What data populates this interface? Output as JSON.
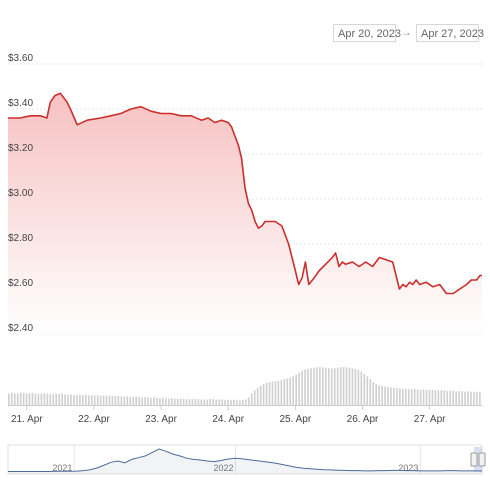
{
  "date_range": {
    "from": "Apr 20, 2023",
    "arrow": "→",
    "to": "Apr 27, 2023"
  },
  "colors": {
    "line": "#c9302c",
    "fill_top": "#f7c1c1",
    "fill_bottom": "#ffffff",
    "volume": "#d0d0d0",
    "navigator": "#4d6a99"
  },
  "chart_data": {
    "type": "area",
    "y_ticks": [
      "$3.60",
      "$3.40",
      "$3.20",
      "$3.00",
      "$2.80",
      "$2.60",
      "$2.40"
    ],
    "y_tick_values": [
      3.6,
      3.4,
      3.2,
      3.0,
      2.8,
      2.6,
      2.4
    ],
    "ylim": [
      2.4,
      3.6
    ],
    "x_ticks": [
      "21. Apr",
      "22. Apr",
      "23. Apr",
      "24. Apr",
      "25. Apr",
      "26. Apr",
      "27. Apr"
    ],
    "x_tick_values": [
      21,
      22,
      23,
      24,
      25,
      26,
      27
    ],
    "xlim": [
      20.72,
      27.78
    ],
    "grid": true,
    "series": [
      {
        "x": [
          20.72,
          20.9,
          21.05,
          21.2,
          21.3,
          21.35,
          21.42,
          21.5,
          21.6,
          21.65,
          21.75,
          21.9,
          22.1,
          22.25,
          22.4,
          22.55,
          22.7,
          22.85,
          23.0,
          23.15,
          23.3,
          23.45,
          23.6,
          23.7,
          23.8,
          23.9,
          24.0,
          24.05,
          24.1,
          24.15,
          24.2,
          24.25,
          24.3,
          24.35,
          24.4,
          24.45,
          24.5,
          24.55,
          24.6,
          24.7,
          24.8,
          24.9,
          25.0,
          25.05,
          25.1,
          25.15,
          25.2,
          25.28,
          25.35,
          25.45,
          25.55,
          25.6,
          25.65,
          25.7,
          25.75,
          25.85,
          25.95,
          26.05,
          26.15,
          26.25,
          26.35,
          26.45,
          26.55,
          26.6,
          26.65,
          26.7,
          26.75,
          26.8,
          26.85,
          26.95,
          27.05,
          27.15,
          27.25,
          27.35,
          27.45,
          27.55,
          27.62,
          27.7,
          27.75,
          27.78
        ],
        "y": [
          3.36,
          3.36,
          3.37,
          3.37,
          3.36,
          3.43,
          3.46,
          3.47,
          3.43,
          3.4,
          3.33,
          3.35,
          3.36,
          3.37,
          3.38,
          3.4,
          3.41,
          3.39,
          3.38,
          3.38,
          3.37,
          3.37,
          3.35,
          3.36,
          3.34,
          3.35,
          3.34,
          3.32,
          3.28,
          3.24,
          3.18,
          3.05,
          2.98,
          2.95,
          2.9,
          2.87,
          2.88,
          2.9,
          2.9,
          2.9,
          2.88,
          2.8,
          2.68,
          2.62,
          2.65,
          2.72,
          2.62,
          2.65,
          2.68,
          2.71,
          2.74,
          2.76,
          2.7,
          2.72,
          2.71,
          2.72,
          2.7,
          2.72,
          2.7,
          2.74,
          2.73,
          2.72,
          2.6,
          2.62,
          2.61,
          2.63,
          2.62,
          2.64,
          2.62,
          2.63,
          2.61,
          2.62,
          2.58,
          2.58,
          2.6,
          2.62,
          2.64,
          2.64,
          2.66,
          2.66
        ]
      }
    ],
    "volume": {
      "x_start": 20.72,
      "x_end": 27.78,
      "values": [
        0.3,
        0.32,
        0.31,
        0.3,
        0.33,
        0.32,
        0.3,
        0.31,
        0.32,
        0.3,
        0.29,
        0.3,
        0.31,
        0.3,
        0.29,
        0.28,
        0.3,
        0.29,
        0.3,
        0.28,
        0.27,
        0.28,
        0.27,
        0.26,
        0.27,
        0.26,
        0.27,
        0.25,
        0.26,
        0.25,
        0.26,
        0.24,
        0.25,
        0.24,
        0.25,
        0.24,
        0.23,
        0.24,
        0.23,
        0.22,
        0.23,
        0.22,
        0.21,
        0.22,
        0.21,
        0.2,
        0.21,
        0.2,
        0.19,
        0.2,
        0.19,
        0.18,
        0.19,
        0.18,
        0.17,
        0.18,
        0.17,
        0.16,
        0.17,
        0.16,
        0.15,
        0.16,
        0.15,
        0.16,
        0.15,
        0.14,
        0.15,
        0.14,
        0.16,
        0.15,
        0.14,
        0.15,
        0.14,
        0.13,
        0.14,
        0.13,
        0.14,
        0.13,
        0.12,
        0.13,
        0.15,
        0.2,
        0.3,
        0.38,
        0.45,
        0.5,
        0.55,
        0.58,
        0.6,
        0.62,
        0.63,
        0.64,
        0.66,
        0.68,
        0.7,
        0.72,
        0.75,
        0.8,
        0.85,
        0.9,
        0.93,
        0.95,
        0.97,
        0.98,
        0.99,
        1.0,
        0.99,
        0.98,
        0.97,
        0.96,
        0.97,
        0.98,
        0.99,
        1.0,
        0.99,
        0.98,
        0.97,
        0.95,
        0.92,
        0.88,
        0.82,
        0.75,
        0.68,
        0.6,
        0.55,
        0.52,
        0.5,
        0.48,
        0.47,
        0.46,
        0.45,
        0.44,
        0.43,
        0.42,
        0.43,
        0.42,
        0.41,
        0.42,
        0.41,
        0.4,
        0.41,
        0.4,
        0.39,
        0.4,
        0.39,
        0.38,
        0.39,
        0.38,
        0.37,
        0.38,
        0.37,
        0.36,
        0.37,
        0.36,
        0.35,
        0.36,
        0.35,
        0.34,
        0.35,
        0.34
      ]
    },
    "navigator": {
      "labels": [
        "2021",
        "2022",
        "2023"
      ],
      "label_positions": [
        0.14,
        0.48,
        0.87
      ],
      "values": [
        0.02,
        0.02,
        0.02,
        0.02,
        0.02,
        0.02,
        0.02,
        0.03,
        0.03,
        0.03,
        0.04,
        0.06,
        0.1,
        0.18,
        0.3,
        0.42,
        0.48,
        0.4,
        0.55,
        0.62,
        0.7,
        0.85,
        1.0,
        0.9,
        0.78,
        0.7,
        0.6,
        0.55,
        0.52,
        0.48,
        0.45,
        0.5,
        0.56,
        0.6,
        0.58,
        0.54,
        0.5,
        0.46,
        0.42,
        0.38,
        0.32,
        0.26,
        0.2,
        0.16,
        0.14,
        0.12,
        0.1,
        0.09,
        0.08,
        0.07,
        0.06,
        0.06,
        0.05,
        0.05,
        0.06,
        0.06,
        0.07,
        0.07,
        0.06,
        0.06,
        0.05,
        0.05,
        0.05,
        0.05,
        0.06,
        0.06,
        0.05,
        0.05,
        0.05,
        0.05
      ]
    }
  }
}
